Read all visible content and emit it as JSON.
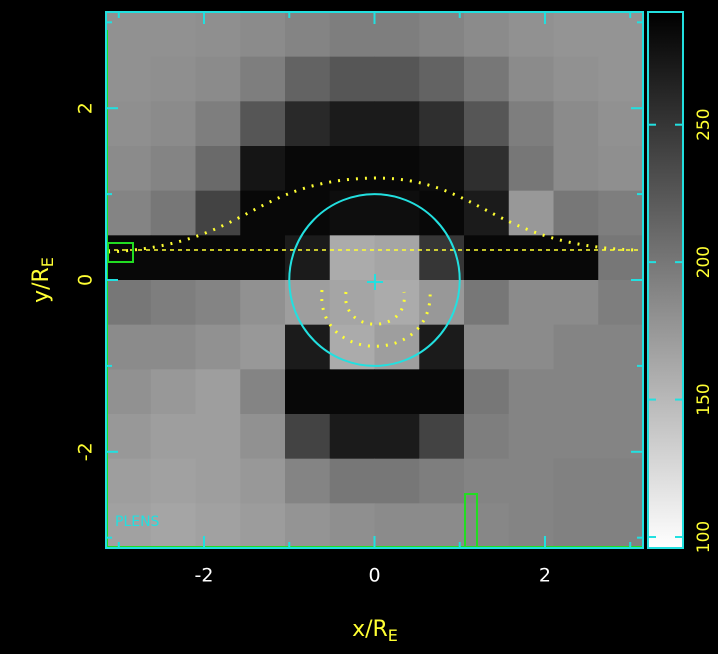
{
  "chart_data": {
    "type": "heatmap",
    "xlabel": "x/R",
    "xlabel_sub": "E",
    "ylabel": "y/R",
    "ylabel_sub": "E",
    "annotation": "PLENS",
    "xlim": [
      -3.15,
      3.15
    ],
    "ylim": [
      -3.12,
      3.12
    ],
    "xticks": [
      -2,
      0,
      2
    ],
    "yticks": [
      -2,
      0,
      2
    ],
    "xminorticks": [
      -3,
      -1,
      1,
      3
    ],
    "yminorticks": [
      -3,
      -1,
      1,
      3
    ],
    "colorbar_lim": [
      96,
      291
    ],
    "colorbar_ticks": [
      100,
      150,
      200,
      250
    ],
    "z": [
      [
        180,
        180,
        182,
        185,
        190,
        195,
        195,
        190,
        185,
        180,
        178,
        178
      ],
      [
        180,
        182,
        185,
        195,
        215,
        225,
        225,
        215,
        200,
        185,
        180,
        178
      ],
      [
        182,
        185,
        195,
        225,
        260,
        270,
        270,
        255,
        225,
        195,
        185,
        180
      ],
      [
        185,
        190,
        210,
        275,
        285,
        285,
        285,
        280,
        255,
        200,
        185,
        182
      ],
      [
        190,
        200,
        240,
        285,
        285,
        280,
        280,
        285,
        270,
        175,
        200,
        195
      ],
      [
        285,
        285,
        285,
        285,
        270,
        160,
        165,
        250,
        285,
        285,
        285,
        200
      ],
      [
        200,
        195,
        190,
        180,
        170,
        165,
        160,
        175,
        200,
        185,
        185,
        195
      ],
      [
        185,
        185,
        180,
        175,
        270,
        160,
        170,
        270,
        185,
        185,
        190,
        190
      ],
      [
        180,
        175,
        170,
        190,
        285,
        285,
        285,
        285,
        200,
        190,
        190,
        190
      ],
      [
        175,
        170,
        170,
        180,
        240,
        270,
        270,
        240,
        195,
        190,
        190,
        190
      ],
      [
        170,
        168,
        170,
        175,
        190,
        200,
        200,
        195,
        190,
        190,
        192,
        192
      ],
      [
        168,
        165,
        168,
        172,
        178,
        182,
        185,
        185,
        188,
        190,
        192,
        192
      ]
    ]
  }
}
